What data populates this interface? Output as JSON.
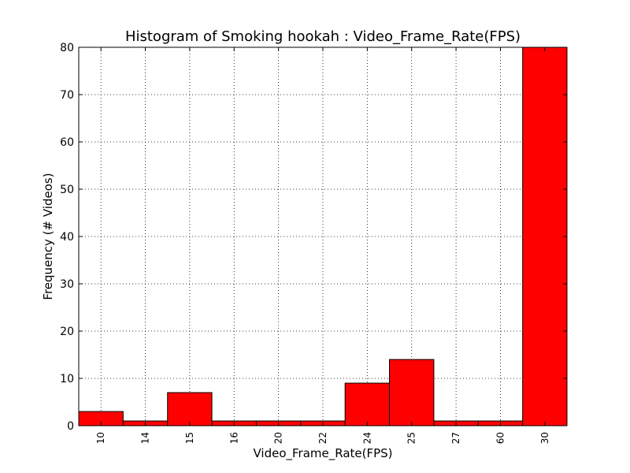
{
  "chart_data": {
    "type": "bar",
    "title": "Histogram of Smoking hookah : Video_Frame_Rate(FPS)",
    "xlabel": "Video_Frame_Rate(FPS)",
    "ylabel": "Frequency (# Videos)",
    "categories": [
      "10",
      "14",
      "15",
      "16",
      "20",
      "22",
      "24",
      "25",
      "27",
      "60",
      "30"
    ],
    "values": [
      3,
      1,
      7,
      1,
      1,
      1,
      9,
      14,
      1,
      1,
      80
    ],
    "ylim": [
      0,
      80
    ],
    "yticks": [
      "0",
      "10",
      "20",
      "30",
      "40",
      "50",
      "60",
      "70",
      "80"
    ],
    "grid": true,
    "bar_color": "#ff0000",
    "edge_color": "#000000"
  }
}
